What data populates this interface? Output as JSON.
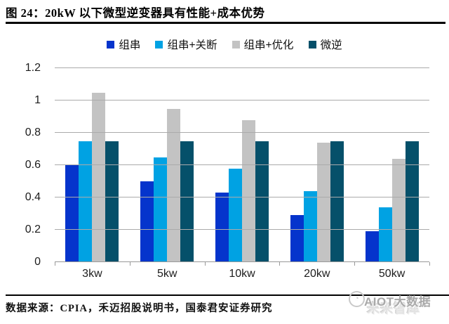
{
  "figure": {
    "title": "图 24：20kW 以下微型逆变器具有性能+成本优势",
    "source": "数据来源：CPIA，禾迈招股说明书，国泰君安证券研究"
  },
  "watermark": {
    "text": "AIOT大数据",
    "ghost_text": "未来智库",
    "logo_icon": "globe-emblem"
  },
  "colors": {
    "series_string": "#0534CC",
    "series_string_shutdown": "#00A2E3",
    "series_string_optimized": "#C3C3C3",
    "series_micro": "#05506A",
    "gridline": "#ABABAB",
    "axis": "#999999",
    "title_rule": "#000000"
  },
  "chart_data": {
    "type": "bar",
    "title": "20kW 以下微型逆变器具有性能+成本优势",
    "xlabel": "",
    "ylabel": "",
    "categories": [
      "3kw",
      "5kw",
      "10kw",
      "20kw",
      "50kw"
    ],
    "series": [
      {
        "name": "组串",
        "color": "#0534CC",
        "values": [
          0.6,
          0.5,
          0.43,
          0.29,
          0.19
        ]
      },
      {
        "name": "组串+关断",
        "color": "#00A2E3",
        "values": [
          0.75,
          0.65,
          0.58,
          0.44,
          0.34
        ]
      },
      {
        "name": "组串+优化",
        "color": "#C3C3C3",
        "values": [
          1.05,
          0.95,
          0.88,
          0.74,
          0.64
        ]
      },
      {
        "name": "微逆",
        "color": "#05506A",
        "values": [
          0.75,
          0.75,
          0.75,
          0.75,
          0.75
        ]
      }
    ],
    "ylim": [
      0,
      1.2
    ],
    "yticks": [
      0,
      0.2,
      0.4,
      0.6,
      0.8,
      1,
      1.2
    ],
    "grid": "horizontal",
    "legend_position": "top"
  }
}
